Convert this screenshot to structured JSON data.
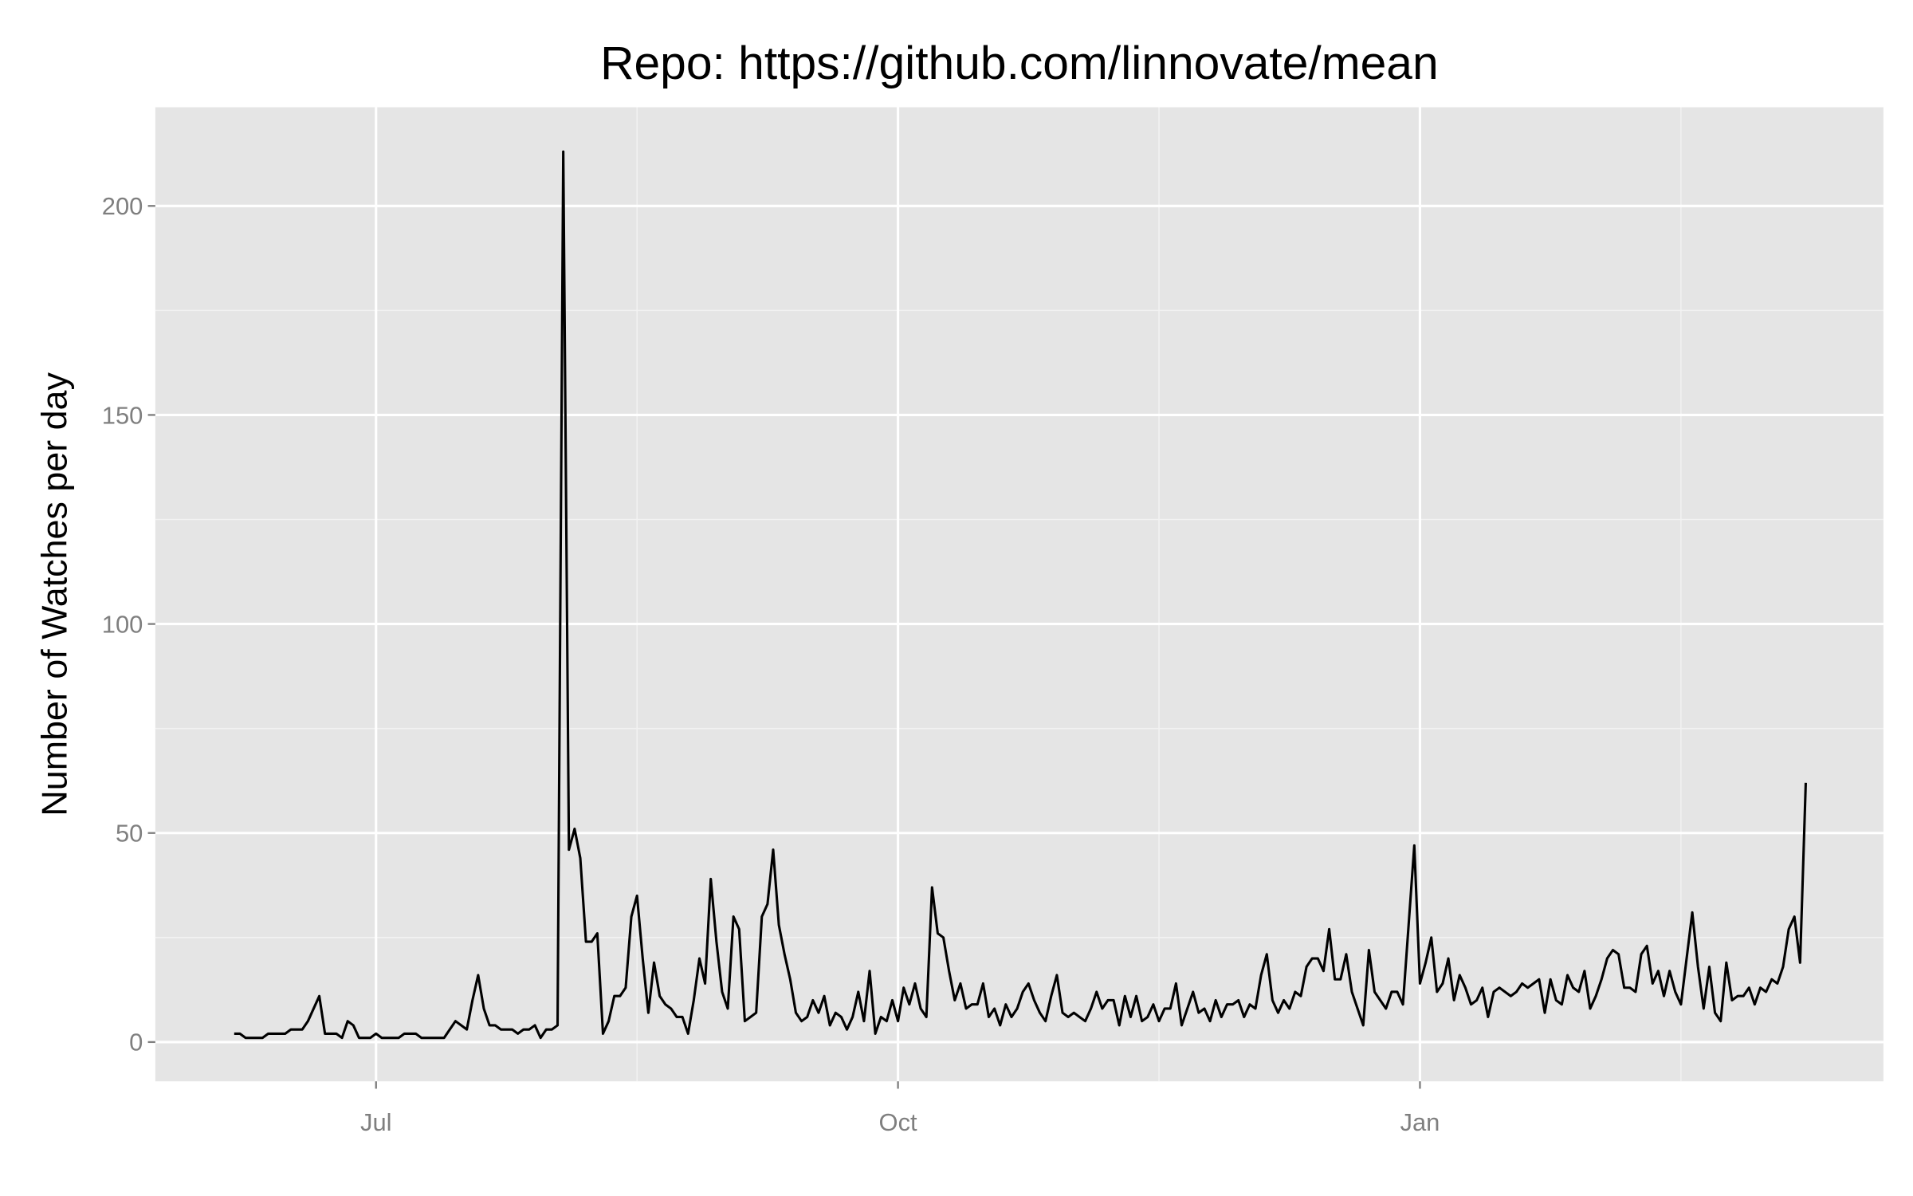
{
  "chart_data": {
    "type": "line",
    "title": "Repo: https://github.com/linnovate/mean",
    "y_label": "Number of Watches per day",
    "categories": [
      null,
      null,
      null,
      null,
      null,
      null,
      null,
      null,
      null,
      null,
      null,
      null,
      null,
      null,
      null,
      null,
      null,
      null,
      null,
      null,
      null,
      null,
      null,
      null,
      null,
      "Jul",
      null,
      null,
      null,
      null,
      null,
      null,
      null,
      null,
      null,
      null,
      null,
      null,
      null,
      null,
      null,
      null,
      null,
      null,
      null,
      null,
      null,
      null,
      null,
      null,
      null,
      null,
      null,
      null,
      null,
      null,
      null,
      null,
      null,
      null,
      null,
      null,
      null,
      null,
      null,
      null,
      null,
      null,
      null,
      null,
      null,
      null,
      null,
      null,
      null,
      null,
      null,
      null,
      null,
      null,
      null,
      null,
      null,
      null,
      null,
      null,
      null,
      null,
      null,
      null,
      null,
      null,
      null,
      null,
      null,
      null,
      null,
      null,
      null,
      null,
      null,
      null,
      null,
      null,
      null,
      null,
      null,
      null,
      null,
      null,
      null,
      null,
      null,
      null,
      null,
      null,
      null,
      "Oct",
      null,
      null,
      null,
      null,
      null,
      null,
      null,
      null,
      null,
      null,
      null,
      null,
      null,
      null,
      null,
      null,
      null,
      null,
      null,
      null,
      null,
      null,
      null,
      null,
      null,
      null,
      null,
      null,
      null,
      null,
      null,
      null,
      null,
      null,
      null,
      null,
      null,
      null,
      null,
      null,
      null,
      null,
      null,
      null,
      null,
      null,
      null,
      null,
      null,
      null,
      null,
      null,
      null,
      null,
      null,
      null,
      null,
      null,
      null,
      null,
      null,
      null,
      null,
      null,
      null,
      null,
      null,
      null,
      null,
      null,
      null,
      null,
      null,
      null,
      null,
      null,
      null,
      null,
      null,
      null,
      null,
      null,
      null,
      null,
      null,
      null,
      null,
      null,
      null,
      null,
      null,
      "Jan",
      null,
      null,
      null,
      null,
      null,
      null,
      null,
      null,
      null,
      null,
      null,
      null,
      null,
      null,
      null,
      null,
      null,
      null,
      null,
      null,
      null,
      null,
      null,
      null,
      null,
      null,
      null,
      null,
      null,
      null,
      null,
      null,
      null,
      null,
      null,
      null,
      null,
      null,
      null,
      null,
      null,
      null,
      null,
      null,
      null,
      null,
      null,
      null,
      null,
      null,
      null,
      null,
      null,
      null,
      null,
      null,
      null,
      null,
      null,
      null,
      null,
      null,
      null,
      null,
      null,
      null,
      null,
      null
    ],
    "values": [
      2,
      2,
      1,
      1,
      1,
      1,
      2,
      2,
      2,
      2,
      3,
      3,
      3,
      5,
      8,
      11,
      2,
      2,
      2,
      1,
      5,
      4,
      1,
      1,
      1,
      2,
      1,
      1,
      1,
      1,
      2,
      2,
      2,
      1,
      1,
      1,
      1,
      1,
      3,
      5,
      4,
      3,
      10,
      16,
      8,
      4,
      4,
      3,
      3,
      3,
      2,
      3,
      3,
      4,
      1,
      3,
      3,
      4,
      213,
      46,
      51,
      44,
      24,
      24,
      26,
      2,
      5,
      11,
      11,
      13,
      30,
      35,
      20,
      7,
      19,
      11,
      9,
      8,
      6,
      6,
      2,
      10,
      20,
      14,
      39,
      24,
      12,
      8,
      30,
      27,
      5,
      6,
      7,
      30,
      33,
      46,
      28,
      21,
      15,
      7,
      5,
      6,
      10,
      7,
      11,
      4,
      7,
      6,
      3,
      6,
      12,
      5,
      17,
      2,
      6,
      5,
      10,
      5,
      13,
      9,
      14,
      8,
      6,
      37,
      26,
      25,
      17,
      10,
      14,
      8,
      9,
      9,
      14,
      6,
      8,
      4,
      9,
      6,
      8,
      12,
      14,
      10,
      7,
      5,
      11,
      16,
      7,
      6,
      7,
      6,
      5,
      8,
      12,
      8,
      10,
      10,
      4,
      11,
      6,
      11,
      5,
      6,
      9,
      5,
      8,
      8,
      14,
      4,
      8,
      12,
      7,
      8,
      5,
      10,
      6,
      9,
      9,
      10,
      6,
      9,
      8,
      16,
      21,
      10,
      7,
      10,
      8,
      12,
      11,
      18,
      20,
      20,
      17,
      27,
      15,
      15,
      21,
      12,
      8,
      4,
      22,
      12,
      10,
      8,
      12,
      12,
      9,
      28,
      47,
      14,
      19,
      25,
      12,
      14,
      20,
      10,
      16,
      13,
      9,
      10,
      13,
      6,
      12,
      13,
      12,
      11,
      12,
      14,
      13,
      14,
      15,
      7,
      15,
      10,
      9,
      16,
      13,
      12,
      17,
      8,
      11,
      15,
      20,
      22,
      21,
      13,
      13,
      12,
      21,
      23,
      14,
      17,
      11,
      17,
      12,
      9,
      20,
      31,
      18,
      8,
      18,
      7,
      5,
      19,
      10,
      11,
      11,
      13,
      9,
      13,
      12,
      15,
      14,
      18,
      27,
      30,
      19,
      62
    ],
    "color": "#000000",
    "panel_color": "#e5e5e5",
    "ylim": [
      -9.4,
      223.6
    ],
    "yticks": [
      0,
      50,
      100,
      150,
      200
    ],
    "grid": true
  }
}
